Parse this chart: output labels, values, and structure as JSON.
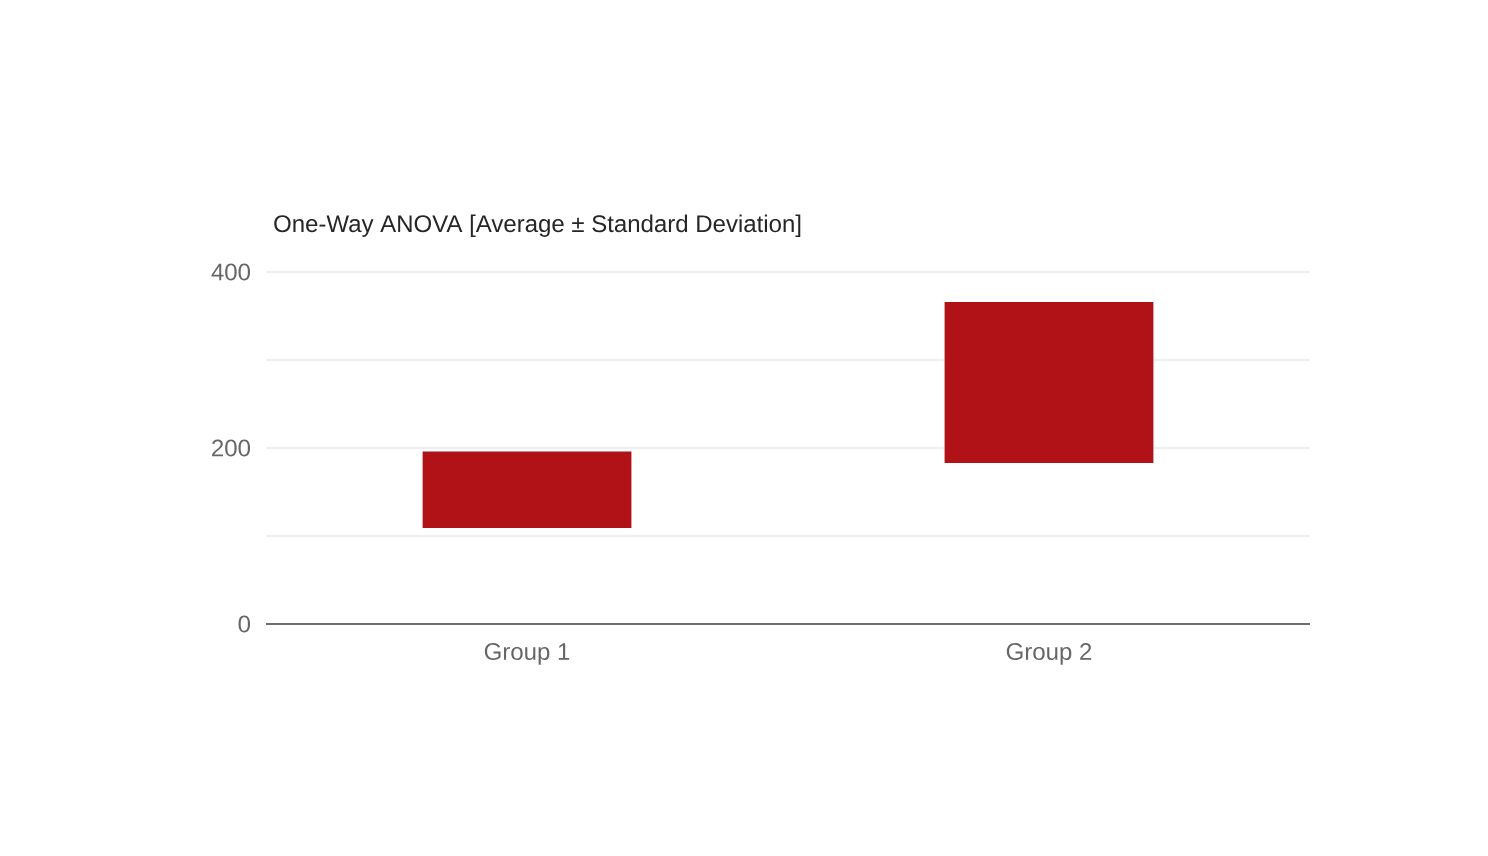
{
  "chart_data": {
    "type": "bar",
    "title": "One-Way ANOVA [Average ± Standard Deviation]",
    "categories": [
      "Group 1",
      "Group 2"
    ],
    "values": [
      87,
      183
    ],
    "base": [
      109,
      183
    ],
    "color": "#b01218",
    "ylim": [
      0,
      400
    ],
    "yticks": [
      0,
      {
        "value": 100,
        "label": null
      },
      200,
      {
        "value": 300,
        "label": null
      },
      400
    ],
    "grid": "y"
  }
}
